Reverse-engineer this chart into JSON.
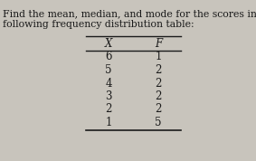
{
  "title_line1": "Find the mean, median, and mode for the scores in the",
  "title_line2": "following frequency distribution table:",
  "col_headers": [
    "X",
    "F"
  ],
  "rows": [
    [
      "6",
      "1"
    ],
    [
      "5",
      "2"
    ],
    [
      "4",
      "2"
    ],
    [
      "3",
      "2"
    ],
    [
      "2",
      "2"
    ],
    [
      "1",
      "5"
    ]
  ],
  "background_color": "#c8c4bc",
  "text_color": "#1a1a1a",
  "title_fontsize": 7.8,
  "table_fontsize": 8.5,
  "header_fontsize": 8.5
}
